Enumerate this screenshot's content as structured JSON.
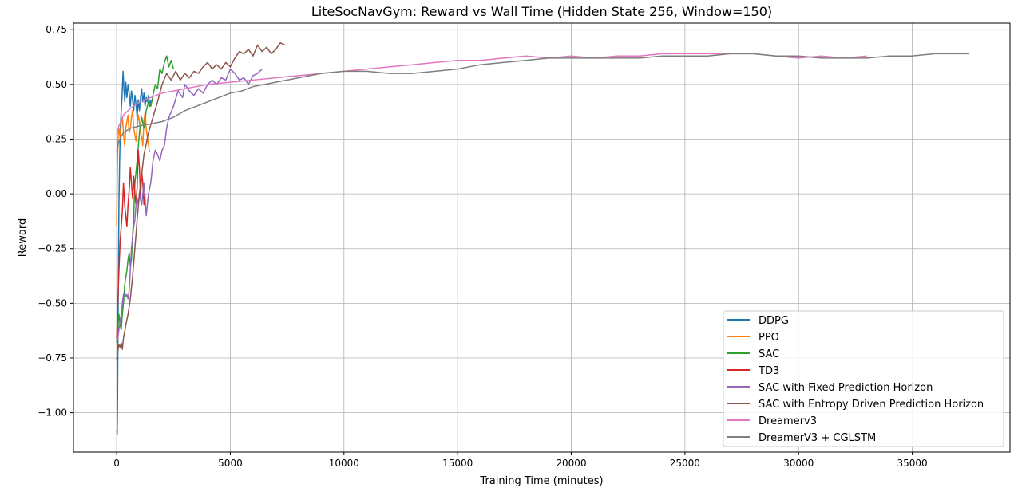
{
  "chart_data": {
    "type": "line",
    "title": "LiteSocNavGym: Reward vs Wall Time (Hidden State 256, Window=150)",
    "xlabel": "Training Time (minutes)",
    "ylabel": "Reward",
    "xlim": [
      -1900,
      39300
    ],
    "ylim": [
      -1.18,
      0.78
    ],
    "xticks": [
      0,
      5000,
      10000,
      15000,
      20000,
      25000,
      30000,
      35000
    ],
    "yticks": [
      -1.0,
      -0.75,
      -0.5,
      -0.25,
      0.0,
      0.25,
      0.5,
      0.75
    ],
    "ytick_labels": [
      "−1.00",
      "−0.75",
      "−0.50",
      "−0.25",
      "0.00",
      "0.25",
      "0.50",
      "0.75"
    ],
    "grid": true,
    "legend_position": "lower-right",
    "series": [
      {
        "name": "DDPG",
        "color": "#1f77b4",
        "x": [
          0,
          20,
          40,
          60,
          80,
          100,
          130,
          160,
          200,
          240,
          280,
          320,
          360,
          400,
          450,
          500,
          550,
          600,
          650,
          700,
          750,
          800,
          850,
          900,
          950,
          1000,
          1050,
          1100,
          1150,
          1200,
          1250,
          1300,
          1350,
          1400,
          1450,
          1500
        ],
        "y": [
          -1.08,
          -1.1,
          -0.95,
          -0.6,
          -0.3,
          -0.05,
          0.15,
          0.3,
          0.38,
          0.45,
          0.56,
          0.48,
          0.42,
          0.51,
          0.44,
          0.5,
          0.46,
          0.4,
          0.47,
          0.43,
          0.38,
          0.45,
          0.41,
          0.35,
          0.43,
          0.38,
          0.44,
          0.48,
          0.42,
          0.46,
          0.4,
          0.44,
          0.42,
          0.45,
          0.4,
          0.43
        ]
      },
      {
        "name": "PPO",
        "color": "#ff7f0e",
        "x": [
          0,
          30,
          60,
          100,
          150,
          200,
          250,
          300,
          350,
          400,
          450,
          500,
          550,
          600,
          650,
          700,
          750,
          800,
          850,
          900,
          950,
          1000,
          1050,
          1100,
          1150,
          1200,
          1250,
          1300,
          1350,
          1400,
          1450
        ],
        "y": [
          -0.15,
          0.1,
          0.25,
          0.3,
          0.26,
          0.32,
          0.35,
          0.28,
          0.22,
          0.3,
          0.33,
          0.36,
          0.28,
          0.3,
          0.35,
          0.38,
          0.3,
          0.27,
          0.24,
          0.3,
          0.36,
          0.33,
          0.28,
          0.26,
          0.22,
          0.34,
          0.37,
          0.3,
          0.26,
          0.22,
          0.19
        ]
      },
      {
        "name": "SAC",
        "color": "#2ca02c",
        "x": [
          0,
          50,
          100,
          150,
          200,
          250,
          300,
          350,
          400,
          450,
          500,
          550,
          600,
          650,
          700,
          750,
          800,
          900,
          1000,
          1100,
          1200,
          1300,
          1400,
          1500,
          1600,
          1700,
          1800,
          1900,
          2000,
          2100,
          2200,
          2300,
          2400,
          2500
        ],
        "y": [
          -0.68,
          -0.62,
          -0.55,
          -0.6,
          -0.62,
          -0.55,
          -0.5,
          -0.42,
          -0.38,
          -0.35,
          -0.3,
          -0.27,
          -0.33,
          -0.3,
          -0.2,
          -0.1,
          0.05,
          0.15,
          0.28,
          0.35,
          0.3,
          0.38,
          0.42,
          0.4,
          0.45,
          0.5,
          0.48,
          0.57,
          0.55,
          0.6,
          0.63,
          0.58,
          0.61,
          0.57
        ]
      },
      {
        "name": "TD3",
        "color": "#d62728",
        "x": [
          0,
          50,
          100,
          150,
          200,
          250,
          300,
          350,
          400,
          450,
          500,
          550,
          600,
          650,
          700,
          750,
          800,
          850,
          900,
          950,
          1000,
          1050,
          1100,
          1150,
          1200,
          1250
        ],
        "y": [
          -0.66,
          -0.5,
          -0.35,
          -0.22,
          -0.15,
          -0.08,
          0.05,
          -0.05,
          -0.1,
          -0.15,
          -0.05,
          0.02,
          0.12,
          0.05,
          -0.02,
          0.08,
          0.0,
          -0.05,
          0.03,
          0.2,
          0.12,
          -0.02,
          0.1,
          0.05,
          -0.05,
          0.0
        ]
      },
      {
        "name": "SAC with Fixed Prediction Horizon",
        "color": "#9467bd",
        "x": [
          0,
          50,
          100,
          150,
          200,
          250,
          300,
          350,
          400,
          450,
          500,
          550,
          600,
          650,
          700,
          750,
          800,
          850,
          900,
          950,
          1000,
          1100,
          1200,
          1300,
          1400,
          1500,
          1600,
          1700,
          1800,
          1900,
          2000,
          2100,
          2200,
          2300,
          2500,
          2700,
          2900,
          3000,
          3200,
          3400,
          3600,
          3800,
          4000,
          4200,
          4400,
          4600,
          4800,
          5000,
          5200,
          5400,
          5600,
          5800,
          6000,
          6200,
          6400
        ],
        "y": [
          -0.68,
          -0.66,
          -0.62,
          -0.58,
          -0.55,
          -0.5,
          -0.46,
          -0.45,
          -0.47,
          -0.46,
          -0.48,
          -0.44,
          -0.35,
          -0.25,
          -0.2,
          -0.15,
          -0.12,
          -0.05,
          -0.02,
          -0.05,
          0.0,
          -0.05,
          0.05,
          -0.1,
          0.0,
          0.05,
          0.15,
          0.2,
          0.18,
          0.15,
          0.2,
          0.22,
          0.3,
          0.35,
          0.4,
          0.47,
          0.44,
          0.5,
          0.47,
          0.45,
          0.48,
          0.46,
          0.5,
          0.52,
          0.5,
          0.53,
          0.52,
          0.57,
          0.55,
          0.52,
          0.53,
          0.5,
          0.54,
          0.55,
          0.57
        ]
      },
      {
        "name": "SAC with Entropy Driven Prediction Horizon",
        "color": "#8c564b",
        "x": [
          0,
          50,
          100,
          150,
          200,
          250,
          300,
          400,
          500,
          600,
          700,
          800,
          900,
          1000,
          1200,
          1400,
          1600,
          1800,
          2000,
          2200,
          2400,
          2600,
          2800,
          3000,
          3200,
          3400,
          3600,
          3800,
          4000,
          4200,
          4400,
          4600,
          4800,
          5000,
          5200,
          5400,
          5600,
          5800,
          6000,
          6200,
          6400,
          6600,
          6800,
          7000,
          7200,
          7400
        ],
        "y": [
          -0.76,
          -0.72,
          -0.69,
          -0.7,
          -0.68,
          -0.71,
          -0.66,
          -0.6,
          -0.55,
          -0.48,
          -0.38,
          -0.25,
          -0.12,
          0.0,
          0.18,
          0.28,
          0.35,
          0.42,
          0.5,
          0.55,
          0.52,
          0.56,
          0.52,
          0.55,
          0.53,
          0.56,
          0.55,
          0.58,
          0.6,
          0.57,
          0.59,
          0.57,
          0.6,
          0.58,
          0.62,
          0.65,
          0.64,
          0.66,
          0.63,
          0.68,
          0.65,
          0.67,
          0.64,
          0.66,
          0.69,
          0.68
        ]
      },
      {
        "name": "Dreamerv3",
        "color": "#e377c2",
        "x": [
          0,
          100,
          300,
          600,
          1000,
          1500,
          2000,
          2500,
          3000,
          3500,
          4000,
          5000,
          6000,
          7000,
          8000,
          9000,
          10000,
          11000,
          12000,
          13000,
          14000,
          15000,
          16000,
          17000,
          18000,
          19000,
          20000,
          21000,
          22000,
          23000,
          24000,
          25000,
          26000,
          27000,
          28000,
          29000,
          30000,
          31000,
          32000,
          33000
        ],
        "y": [
          0.27,
          0.31,
          0.36,
          0.39,
          0.42,
          0.44,
          0.46,
          0.47,
          0.48,
          0.49,
          0.5,
          0.51,
          0.52,
          0.53,
          0.54,
          0.55,
          0.56,
          0.57,
          0.58,
          0.59,
          0.6,
          0.61,
          0.61,
          0.62,
          0.63,
          0.62,
          0.63,
          0.62,
          0.63,
          0.63,
          0.64,
          0.64,
          0.64,
          0.64,
          0.64,
          0.63,
          0.62,
          0.63,
          0.62,
          0.63
        ]
      },
      {
        "name": "DreamerV3 + CGLSTM",
        "color": "#7f7f7f",
        "x": [
          0,
          100,
          300,
          600,
          1000,
          1500,
          2000,
          2500,
          3000,
          3500,
          4000,
          4500,
          5000,
          5500,
          6000,
          7000,
          8000,
          9000,
          10000,
          11000,
          12000,
          13000,
          14000,
          15000,
          16000,
          17000,
          18000,
          19000,
          20000,
          21000,
          22000,
          23000,
          24000,
          25000,
          26000,
          27000,
          28000,
          29000,
          30000,
          31000,
          32000,
          33000,
          34000,
          35000,
          36000,
          37000,
          37500
        ],
        "y": [
          0.19,
          0.24,
          0.28,
          0.3,
          0.31,
          0.32,
          0.33,
          0.35,
          0.38,
          0.4,
          0.42,
          0.44,
          0.46,
          0.47,
          0.49,
          0.51,
          0.53,
          0.55,
          0.56,
          0.56,
          0.55,
          0.55,
          0.56,
          0.57,
          0.59,
          0.6,
          0.61,
          0.62,
          0.62,
          0.62,
          0.62,
          0.62,
          0.63,
          0.63,
          0.63,
          0.64,
          0.64,
          0.63,
          0.63,
          0.62,
          0.62,
          0.62,
          0.63,
          0.63,
          0.64,
          0.64,
          0.64
        ]
      }
    ]
  }
}
